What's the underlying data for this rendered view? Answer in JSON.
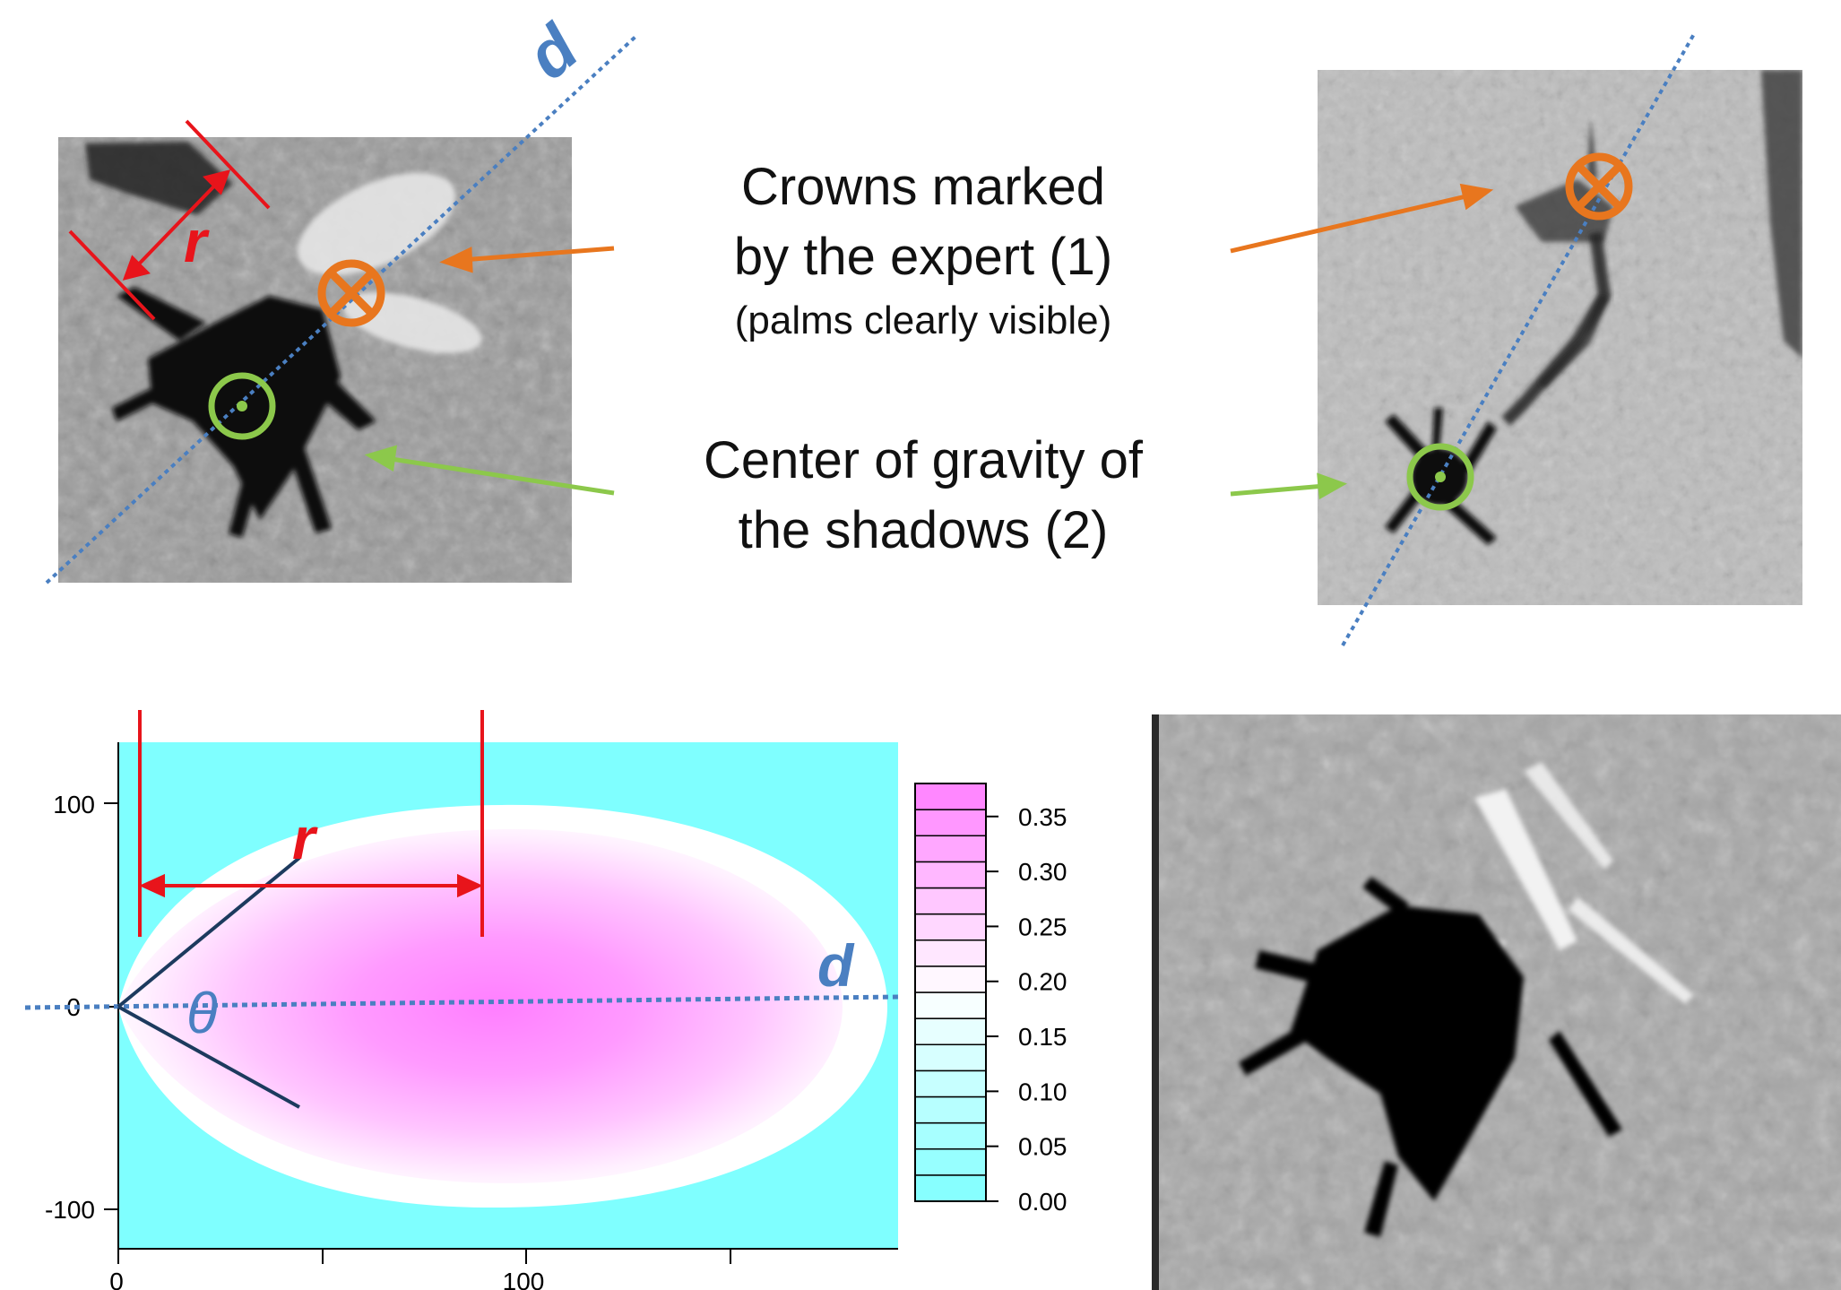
{
  "annotations": {
    "crowns_line1": "Crowns marked",
    "crowns_line2": "by the expert (1)",
    "crowns_note": "(palms clearly visible)",
    "center_line1": "Center of gravity of",
    "center_line2": "the shadows (2)"
  },
  "symbols": {
    "radius": "r",
    "direction": "d",
    "angle": "θ"
  },
  "colors": {
    "crown_marker": "#E8761E",
    "shadow_marker": "#8CC84B",
    "radius_marker": "#E8141B",
    "direction_line": "#4A7FC1",
    "angle_lines": "#1C3A5E",
    "low_value": "#7FFFFF",
    "high_value": "#FF7FFF"
  },
  "plot": {
    "x_ticks": [
      "0",
      "100"
    ],
    "y_ticks": [
      "100",
      "0",
      "-100"
    ],
    "colorbar_ticks": [
      "0.35",
      "0.30",
      "0.25",
      "0.20",
      "0.15",
      "0.10",
      "0.05",
      "0.00"
    ]
  },
  "chart_data": {
    "type": "heatmap",
    "x_ticks": [
      0,
      100
    ],
    "y_ticks": [
      100,
      0,
      -100
    ],
    "x_range": [
      0,
      190
    ],
    "y_range": [
      -118,
      130
    ],
    "value_range": [
      0,
      0.38
    ],
    "colorbar_ticks": [
      0.35,
      0.3,
      0.25,
      0.2,
      0.15,
      0.1,
      0.05,
      0.0
    ],
    "colorbar_levels": 16,
    "grid": false,
    "legend": "right"
  }
}
